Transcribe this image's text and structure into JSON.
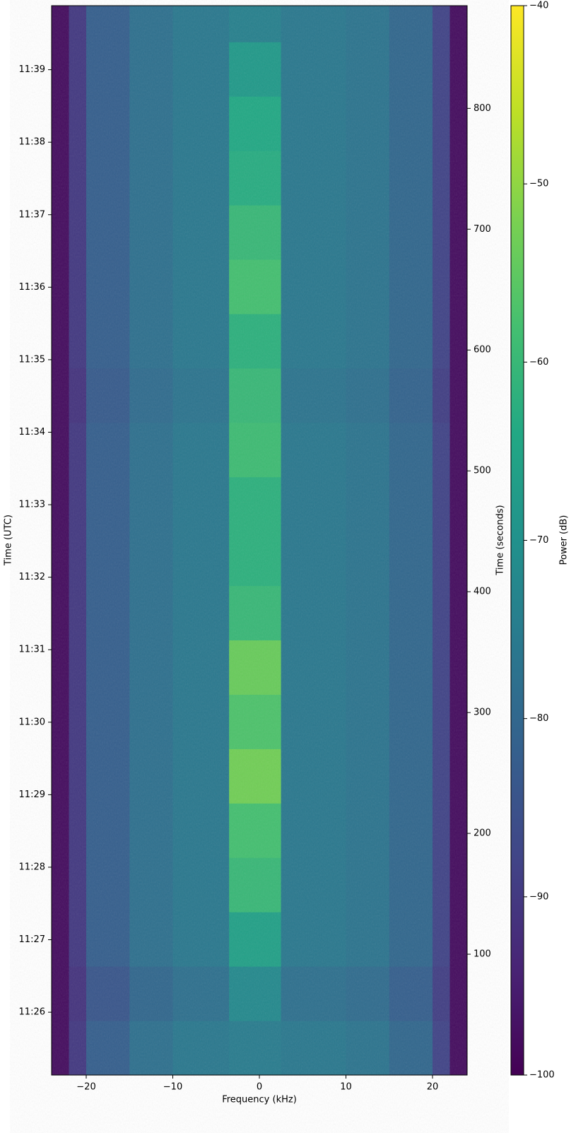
{
  "chart_data": {
    "type": "heatmap",
    "cmap": "viridis",
    "x_label": "Frequency (kHz)",
    "y_label": "Time (UTC)",
    "y2_label": "Time (seconds)",
    "xlim": [
      -24,
      24
    ],
    "ylim": [
      0,
      885
    ],
    "y2lim": [
      0,
      885
    ],
    "xticks": [
      {
        "value": -20,
        "label": "−20"
      },
      {
        "value": -10,
        "label": "−10"
      },
      0,
      10,
      20
    ],
    "yticks": [
      {
        "value": 52,
        "label": "11:26"
      },
      {
        "value": 112,
        "label": "11:27"
      },
      {
        "value": 172,
        "label": "11:28"
      },
      {
        "value": 232,
        "label": "11:29"
      },
      {
        "value": 292,
        "label": "11:30"
      },
      {
        "value": 352,
        "label": "11:31"
      },
      {
        "value": 412,
        "label": "11:32"
      },
      {
        "value": 472,
        "label": "11:33"
      },
      {
        "value": 532,
        "label": "11:34"
      },
      {
        "value": 592,
        "label": "11:35"
      },
      {
        "value": 652,
        "label": "11:36"
      },
      {
        "value": 712,
        "label": "11:37"
      },
      {
        "value": 772,
        "label": "11:38"
      },
      {
        "value": 832,
        "label": "11:39"
      }
    ],
    "y2ticks": [
      100,
      200,
      300,
      400,
      500,
      600,
      700,
      800
    ],
    "x_bins": [
      -24,
      -22,
      -20,
      -15,
      -10,
      -3.5,
      2.5,
      10,
      15,
      20,
      22,
      24
    ],
    "y_bins": [
      0,
      45,
      90,
      135,
      180,
      225,
      270,
      315,
      360,
      405,
      450,
      495,
      540,
      585,
      630,
      675,
      720,
      765,
      810,
      855,
      885
    ],
    "values": [
      [
        -98,
        -90,
        -82,
        -78,
        -76,
        -75,
        -76,
        -77,
        -80,
        -88,
        -98
      ],
      [
        -98,
        -91,
        -84,
        -80,
        -78,
        -72,
        -78,
        -79,
        -82,
        -89,
        -98
      ],
      [
        -98,
        -90,
        -82,
        -78,
        -76,
        -66,
        -76,
        -77,
        -80,
        -88,
        -98
      ],
      [
        -98,
        -90,
        -82,
        -78,
        -76,
        -60,
        -76,
        -77,
        -80,
        -88,
        -98
      ],
      [
        -98,
        -90,
        -82,
        -78,
        -76,
        -58,
        -76,
        -77,
        -80,
        -88,
        -98
      ],
      [
        -98,
        -90,
        -82,
        -78,
        -76,
        -53,
        -76,
        -77,
        -80,
        -88,
        -98
      ],
      [
        -98,
        -90,
        -82,
        -78,
        -76,
        -57,
        -76,
        -77,
        -80,
        -88,
        -98
      ],
      [
        -98,
        -90,
        -82,
        -78,
        -76,
        -54,
        -76,
        -77,
        -80,
        -88,
        -98
      ],
      [
        -98,
        -90,
        -82,
        -78,
        -76,
        -60,
        -76,
        -77,
        -80,
        -88,
        -98
      ],
      [
        -98,
        -90,
        -82,
        -78,
        -76,
        -62,
        -76,
        -77,
        -80,
        -88,
        -98
      ],
      [
        -98,
        -90,
        -82,
        -78,
        -76,
        -62,
        -76,
        -77,
        -80,
        -88,
        -98
      ],
      [
        -98,
        -90,
        -82,
        -78,
        -76,
        -59,
        -76,
        -77,
        -80,
        -88,
        -98
      ],
      [
        -98,
        -91,
        -83,
        -79,
        -77,
        -60,
        -77,
        -78,
        -81,
        -89,
        -98
      ],
      [
        -98,
        -90,
        -82,
        -78,
        -76,
        -62,
        -76,
        -77,
        -80,
        -88,
        -98
      ],
      [
        -98,
        -90,
        -82,
        -78,
        -76,
        -58,
        -76,
        -77,
        -80,
        -88,
        -98
      ],
      [
        -98,
        -90,
        -82,
        -78,
        -76,
        -60,
        -76,
        -77,
        -80,
        -88,
        -98
      ],
      [
        -98,
        -90,
        -82,
        -78,
        -76,
        -63,
        -76,
        -77,
        -80,
        -88,
        -98
      ],
      [
        -98,
        -90,
        -82,
        -78,
        -76,
        -64,
        -76,
        -77,
        -80,
        -88,
        -98
      ],
      [
        -98,
        -90,
        -82,
        -78,
        -76,
        -68,
        -76,
        -77,
        -80,
        -88,
        -98
      ],
      [
        -98,
        -90,
        -82,
        -78,
        -76,
        -74,
        -76,
        -77,
        -80,
        -88,
        -98
      ]
    ],
    "colorbar": {
      "label": "Power (dB)",
      "clim": [
        -100,
        -40
      ],
      "ticks": [
        {
          "value": -100,
          "label": "−100"
        },
        {
          "value": -90,
          "label": "−90"
        },
        {
          "value": -80,
          "label": "−80"
        },
        {
          "value": -70,
          "label": "−70"
        },
        {
          "value": -60,
          "label": "−60"
        },
        {
          "value": -50,
          "label": "−50"
        },
        {
          "value": -40,
          "label": "−40"
        }
      ]
    }
  }
}
